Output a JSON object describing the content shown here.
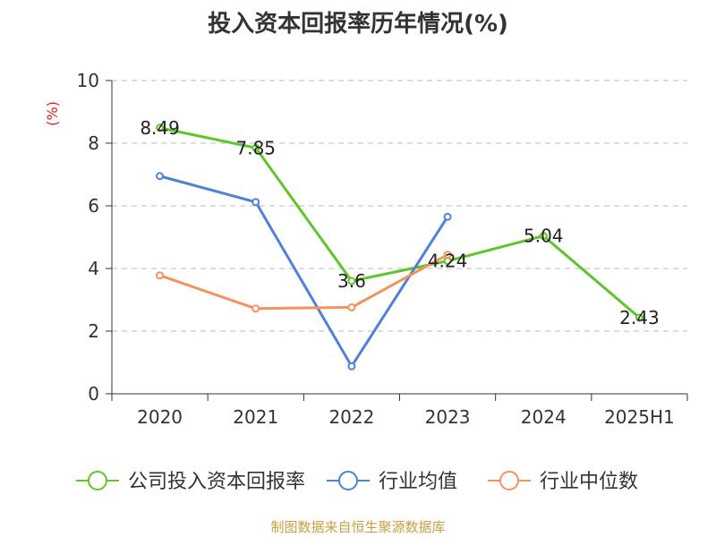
{
  "chart_data": {
    "type": "line",
    "title": "投入资本回报率历年情况(%)",
    "ylabel": "(%)",
    "xlabel": "",
    "categories": [
      "2020",
      "2021",
      "2022",
      "2023",
      "2024",
      "2025H1"
    ],
    "ylim": [
      0,
      10
    ],
    "yticks": [
      0,
      2,
      4,
      6,
      8,
      10
    ],
    "grid": true,
    "legend_position": "bottom",
    "series": [
      {
        "name": "公司投入资本回报率",
        "color": "#5ec62a",
        "values": [
          8.49,
          7.85,
          3.6,
          4.24,
          5.04,
          2.43
        ],
        "data_labels": [
          "8.49",
          "7.85",
          "3.6",
          "4.24",
          "5.04",
          "2.43"
        ]
      },
      {
        "name": "行业均值",
        "color": "#4f81d9",
        "values": [
          6.95,
          6.12,
          0.88,
          5.65,
          null,
          null
        ]
      },
      {
        "name": "行业中位数",
        "color": "#f5915c",
        "values": [
          3.78,
          2.72,
          2.76,
          4.44,
          null,
          null
        ]
      }
    ]
  },
  "footer": {
    "source": "制图数据来自恒生聚源数据库"
  }
}
